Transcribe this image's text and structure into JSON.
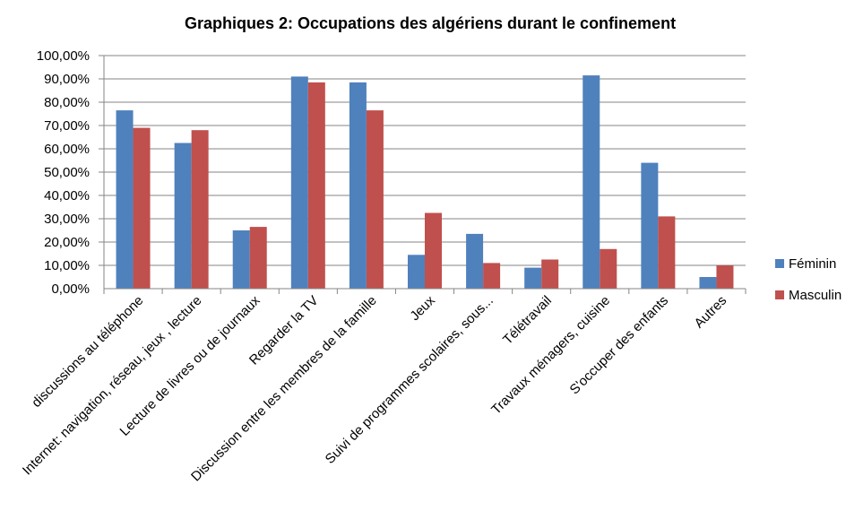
{
  "chart_data": {
    "type": "bar",
    "title": "Graphiques 2: Occupations des algériens durant le confinement",
    "xlabel": "",
    "ylabel": "",
    "ylim": [
      0,
      100
    ],
    "y_ticks": [
      "0,00%",
      "10,00%",
      "20,00%",
      "30,00%",
      "40,00%",
      "50,00%",
      "60,00%",
      "70,00%",
      "80,00%",
      "90,00%",
      "100,00%"
    ],
    "grid": true,
    "legend_position": "right",
    "categories": [
      "discussions au  téléphone",
      "Internet: navigation, réseau, jeux , lecture",
      "Lecture de livres ou de journaux",
      "Regarder la TV",
      "Discussion entre les membres de la famille",
      "Jeux",
      "Suivi de programmes scolaires, sous...",
      "Télétravail",
      "Travaux ménagers, cuisine",
      "S'occuper des enfants",
      "Autres"
    ],
    "series": [
      {
        "name": "Féminin",
        "color": "#4F81BD",
        "values": [
          76.5,
          62.5,
          25.0,
          91.0,
          88.5,
          14.5,
          23.5,
          9.0,
          91.5,
          54.0,
          5.0
        ]
      },
      {
        "name": "Masculin",
        "color": "#C0504D",
        "values": [
          69.0,
          68.0,
          26.5,
          88.5,
          76.5,
          32.5,
          11.0,
          12.5,
          17.0,
          31.0,
          10.0
        ]
      }
    ]
  }
}
